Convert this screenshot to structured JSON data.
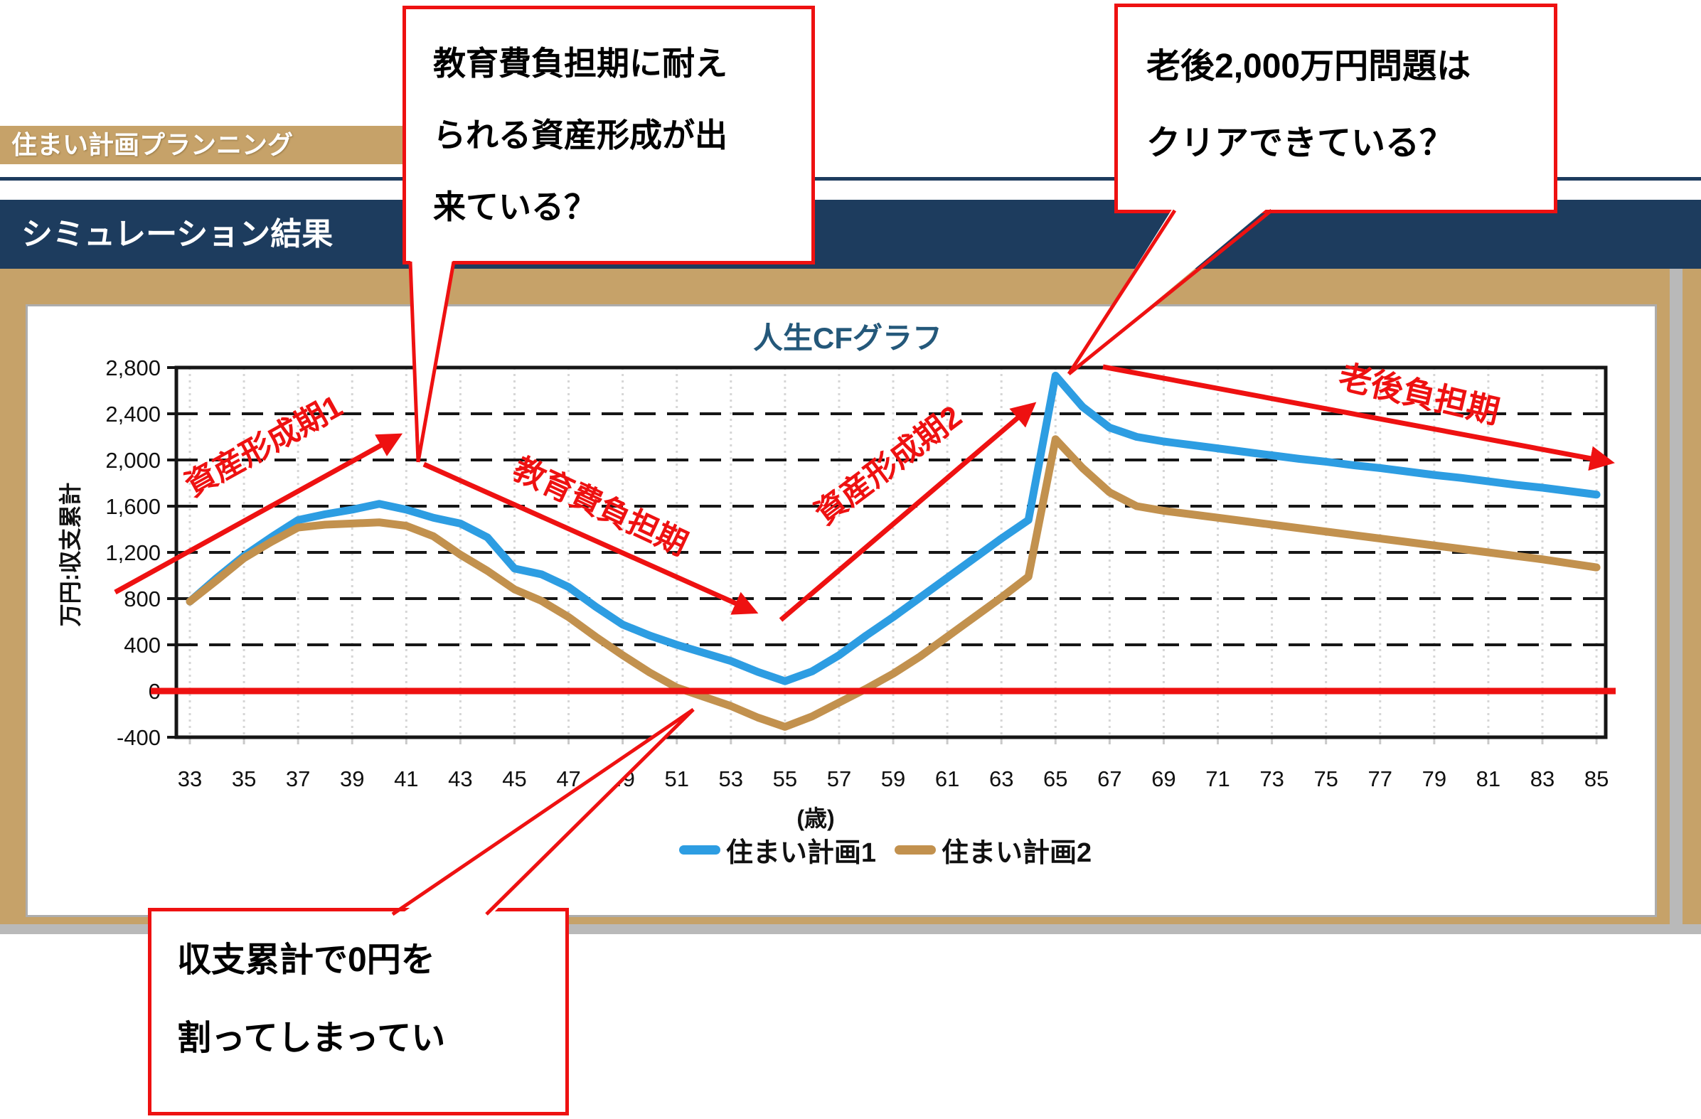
{
  "header": {
    "app_title": "住まい計画プランニング",
    "section_title": "シミュレーション結果"
  },
  "callouts": {
    "education_cost": {
      "line1": "教育費負担期に耐え",
      "line2": "られる資産形成が出",
      "line3": "来ている？"
    },
    "retirement_2000": {
      "line1": "老後2,000万円問題は",
      "line2": "クリアできている？"
    },
    "zero_balance": {
      "line1": "収支累計で0円を",
      "line2": "割ってしまってい"
    }
  },
  "chart_data": {
    "type": "line",
    "title": "人生CFグラフ",
    "ylabel": "万円:収支累計",
    "xlabel": "(歳)",
    "ylim": [
      -400,
      2800
    ],
    "grid": true,
    "legend_position": "bottom",
    "zero_line_color": "#ee1111",
    "x": [
      33,
      34,
      35,
      36,
      37,
      38,
      39,
      40,
      41,
      42,
      43,
      44,
      45,
      46,
      47,
      48,
      49,
      50,
      51,
      52,
      53,
      54,
      55,
      56,
      57,
      58,
      59,
      60,
      61,
      62,
      63,
      64,
      65,
      66,
      67,
      68,
      69,
      70,
      71,
      72,
      73,
      74,
      75,
      76,
      77,
      78,
      79,
      80,
      81,
      82,
      83,
      84,
      85
    ],
    "xtick_labels": [
      "33",
      "35",
      "37",
      "39",
      "41",
      "43",
      "45",
      "47",
      "49",
      "51",
      "53",
      "55",
      "57",
      "59",
      "61",
      "63",
      "65",
      "67",
      "69",
      "71",
      "73",
      "75",
      "77",
      "79",
      "81",
      "83",
      "85"
    ],
    "yticks": [
      {
        "label": "2,800",
        "value": 2800
      },
      {
        "label": "2,400",
        "value": 2400
      },
      {
        "label": "2,000",
        "value": 2000
      },
      {
        "label": "1,600",
        "value": 1600
      },
      {
        "label": "1,200",
        "value": 1200
      },
      {
        "label": "800",
        "value": 800
      },
      {
        "label": "400",
        "value": 400
      },
      {
        "label": "0",
        "value": 0
      },
      {
        "label": "-400",
        "value": -400
      }
    ],
    "series": [
      {
        "name": "住まい計画1",
        "color": "#2d9de2",
        "values": [
          775,
          980,
          1170,
          1330,
          1480,
          1530,
          1570,
          1620,
          1570,
          1500,
          1450,
          1330,
          1060,
          1010,
          900,
          730,
          575,
          480,
          400,
          330,
          260,
          165,
          85,
          170,
          310,
          480,
          640,
          810,
          980,
          1150,
          1320,
          1480,
          2730,
          2460,
          2280,
          2200,
          2160,
          2130,
          2100,
          2070,
          2040,
          2010,
          1985,
          1955,
          1930,
          1900,
          1870,
          1845,
          1815,
          1785,
          1760,
          1730,
          1700
        ]
      },
      {
        "name": "住まい計画2",
        "color": "#c2914e",
        "values": [
          775,
          960,
          1150,
          1290,
          1415,
          1440,
          1450,
          1460,
          1430,
          1340,
          1180,
          1040,
          880,
          780,
          640,
          470,
          310,
          160,
          30,
          -50,
          -130,
          -230,
          -310,
          -220,
          -100,
          20,
          150,
          300,
          470,
          640,
          810,
          990,
          2180,
          1930,
          1720,
          1600,
          1560,
          1530,
          1500,
          1470,
          1440,
          1410,
          1380,
          1350,
          1320,
          1290,
          1260,
          1230,
          1200,
          1170,
          1140,
          1105,
          1070
        ]
      }
    ],
    "annotations": [
      {
        "label": "資産形成期1"
      },
      {
        "label": "教育費負担期"
      },
      {
        "label": "資産形成期2"
      },
      {
        "label": "老後負担期"
      }
    ]
  },
  "colors": {
    "banner_tan": "#c6a269",
    "navy": "#1d3c5e",
    "accent_red": "#ee1111",
    "title_blue": "#24587a"
  }
}
